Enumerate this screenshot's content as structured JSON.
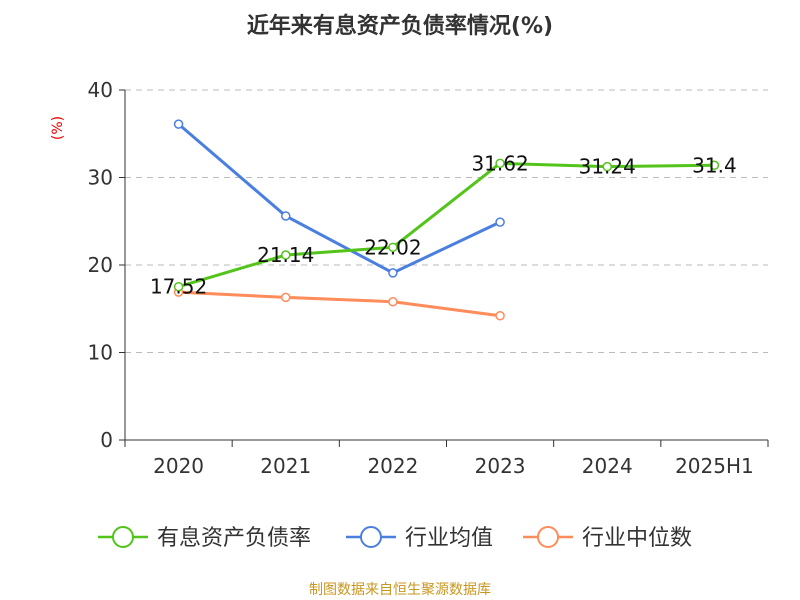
{
  "chart_data": {
    "type": "line",
    "title": "近年来有息资产负债率情况(%)",
    "ylabel": "(%)",
    "xlabel": "",
    "ylim": [
      0,
      40
    ],
    "yticks": [
      0,
      10,
      20,
      30,
      40
    ],
    "grid": true,
    "legend_placement": "bottom",
    "categories": [
      "2020",
      "2021",
      "2022",
      "2023",
      "2024",
      "2025H1"
    ],
    "series": [
      {
        "name": "有息资产负债率",
        "color": "#52c41a",
        "values": [
          17.52,
          21.14,
          22.02,
          31.62,
          31.24,
          31.4
        ],
        "labels": [
          "17.52",
          "21.14",
          "22.02",
          "31.62",
          "31.24",
          "31.4"
        ]
      },
      {
        "name": "行业均值",
        "color": "#4a7fe0",
        "values": [
          36.1,
          25.6,
          19.1,
          24.9,
          null,
          null
        ]
      },
      {
        "name": "行业中位数",
        "color": "#ff8c5a",
        "values": [
          16.9,
          16.3,
          15.8,
          14.2,
          null,
          null
        ]
      }
    ],
    "source": "制图数据来自恒生聚源数据库"
  }
}
